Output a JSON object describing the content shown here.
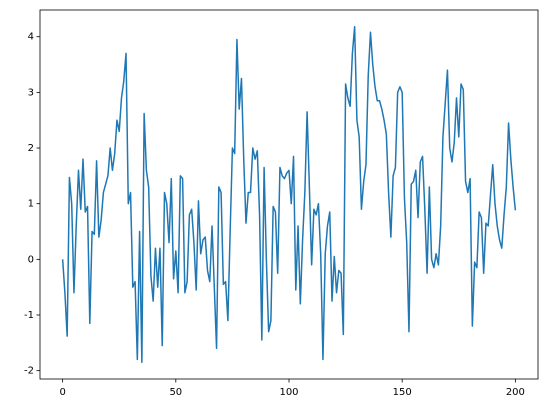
{
  "chart_data": {
    "type": "line",
    "x": [
      0,
      1,
      2,
      3,
      4,
      5,
      6,
      7,
      8,
      9,
      10,
      11,
      12,
      13,
      14,
      15,
      16,
      17,
      18,
      19,
      20,
      21,
      22,
      23,
      24,
      25,
      26,
      27,
      28,
      29,
      30,
      31,
      32,
      33,
      34,
      35,
      36,
      37,
      38,
      39,
      40,
      41,
      42,
      43,
      44,
      45,
      46,
      47,
      48,
      49,
      50,
      51,
      52,
      53,
      54,
      55,
      56,
      57,
      58,
      59,
      60,
      61,
      62,
      63,
      64,
      65,
      66,
      67,
      68,
      69,
      70,
      71,
      72,
      73,
      74,
      75,
      76,
      77,
      78,
      79,
      80,
      81,
      82,
      83,
      84,
      85,
      86,
      87,
      88,
      89,
      90,
      91,
      92,
      93,
      94,
      95,
      96,
      97,
      98,
      99,
      100,
      101,
      102,
      103,
      104,
      105,
      106,
      107,
      108,
      109,
      110,
      111,
      112,
      113,
      114,
      115,
      116,
      117,
      118,
      119,
      120,
      121,
      122,
      123,
      124,
      125,
      126,
      127,
      128,
      129,
      130,
      131,
      132,
      133,
      134,
      135,
      136,
      137,
      138,
      139,
      140,
      141,
      142,
      143,
      144,
      145,
      146,
      147,
      148,
      149,
      150,
      151,
      152,
      153,
      154,
      155,
      156,
      157,
      158,
      159,
      160,
      161,
      162,
      163,
      164,
      165,
      166,
      167,
      168,
      169,
      170,
      171,
      172,
      173,
      174,
      175,
      176,
      177,
      178,
      179,
      180,
      181,
      182,
      183,
      184,
      185,
      186,
      187,
      188,
      189,
      190,
      191,
      192,
      193,
      194,
      195,
      196,
      197,
      198,
      199,
      200
    ],
    "series": [
      {
        "color": "#1f77b4",
        "values": [
          0.0,
          -0.6,
          -1.38,
          1.47,
          1.0,
          -0.6,
          0.6,
          1.6,
          0.9,
          1.8,
          0.85,
          0.95,
          -1.15,
          0.5,
          0.45,
          1.77,
          0.4,
          0.7,
          1.2,
          1.35,
          1.5,
          2.0,
          1.6,
          1.9,
          2.5,
          2.3,
          2.9,
          3.2,
          3.7,
          1.0,
          1.2,
          -0.5,
          -0.4,
          -1.8,
          0.5,
          -1.85,
          2.62,
          1.6,
          1.3,
          -0.3,
          -0.75,
          0.2,
          -0.5,
          0.2,
          -1.55,
          1.2,
          1.0,
          0.3,
          1.45,
          -0.35,
          0.15,
          -0.6,
          1.5,
          1.45,
          -0.6,
          -0.4,
          0.8,
          0.9,
          0.3,
          -0.55,
          1.05,
          0.1,
          0.35,
          0.4,
          -0.2,
          -0.4,
          0.6,
          -0.5,
          -1.6,
          1.3,
          1.2,
          -0.45,
          -0.4,
          -1.1,
          0.5,
          2.0,
          1.9,
          3.95,
          2.7,
          3.25,
          1.8,
          0.65,
          1.2,
          1.2,
          2.0,
          1.8,
          1.95,
          0.8,
          -1.45,
          1.65,
          0.0,
          -1.3,
          -1.1,
          0.95,
          0.85,
          -0.25,
          1.65,
          1.5,
          1.45,
          1.55,
          1.6,
          1.0,
          1.85,
          -0.55,
          0.6,
          -0.8,
          0.35,
          1.2,
          2.65,
          1.3,
          -0.1,
          0.9,
          0.8,
          1.0,
          0.1,
          -1.8,
          0.1,
          0.6,
          0.85,
          -0.75,
          0.05,
          -0.6,
          -0.2,
          -0.25,
          -1.35,
          3.15,
          2.9,
          2.75,
          3.7,
          4.18,
          2.5,
          2.2,
          0.9,
          1.4,
          1.7,
          3.3,
          4.08,
          3.5,
          3.1,
          2.85,
          2.85,
          2.7,
          2.5,
          2.25,
          1.2,
          0.4,
          1.5,
          1.65,
          3.0,
          3.1,
          3.0,
          1.1,
          0.3,
          -1.3,
          1.35,
          1.4,
          1.6,
          0.75,
          1.75,
          1.85,
          0.9,
          -0.25,
          1.3,
          0.0,
          -0.15,
          0.1,
          -0.1,
          0.6,
          2.2,
          2.8,
          3.4,
          2.0,
          1.75,
          2.1,
          2.9,
          2.2,
          3.15,
          3.05,
          1.4,
          1.2,
          1.45,
          -1.2,
          -0.05,
          -0.15,
          0.85,
          0.75,
          -0.25,
          0.65,
          0.6,
          1.15,
          1.7,
          1.0,
          0.6,
          0.35,
          0.2,
          0.8,
          1.3,
          2.45,
          1.8,
          1.3,
          0.88
        ]
      }
    ],
    "xlim": [
      -10,
      210
    ],
    "ylim": [
      -2.15,
      4.48
    ],
    "xticks": [
      0,
      50,
      100,
      150,
      200
    ],
    "yticks": [
      -2,
      -1,
      0,
      1,
      2,
      3,
      4
    ]
  }
}
